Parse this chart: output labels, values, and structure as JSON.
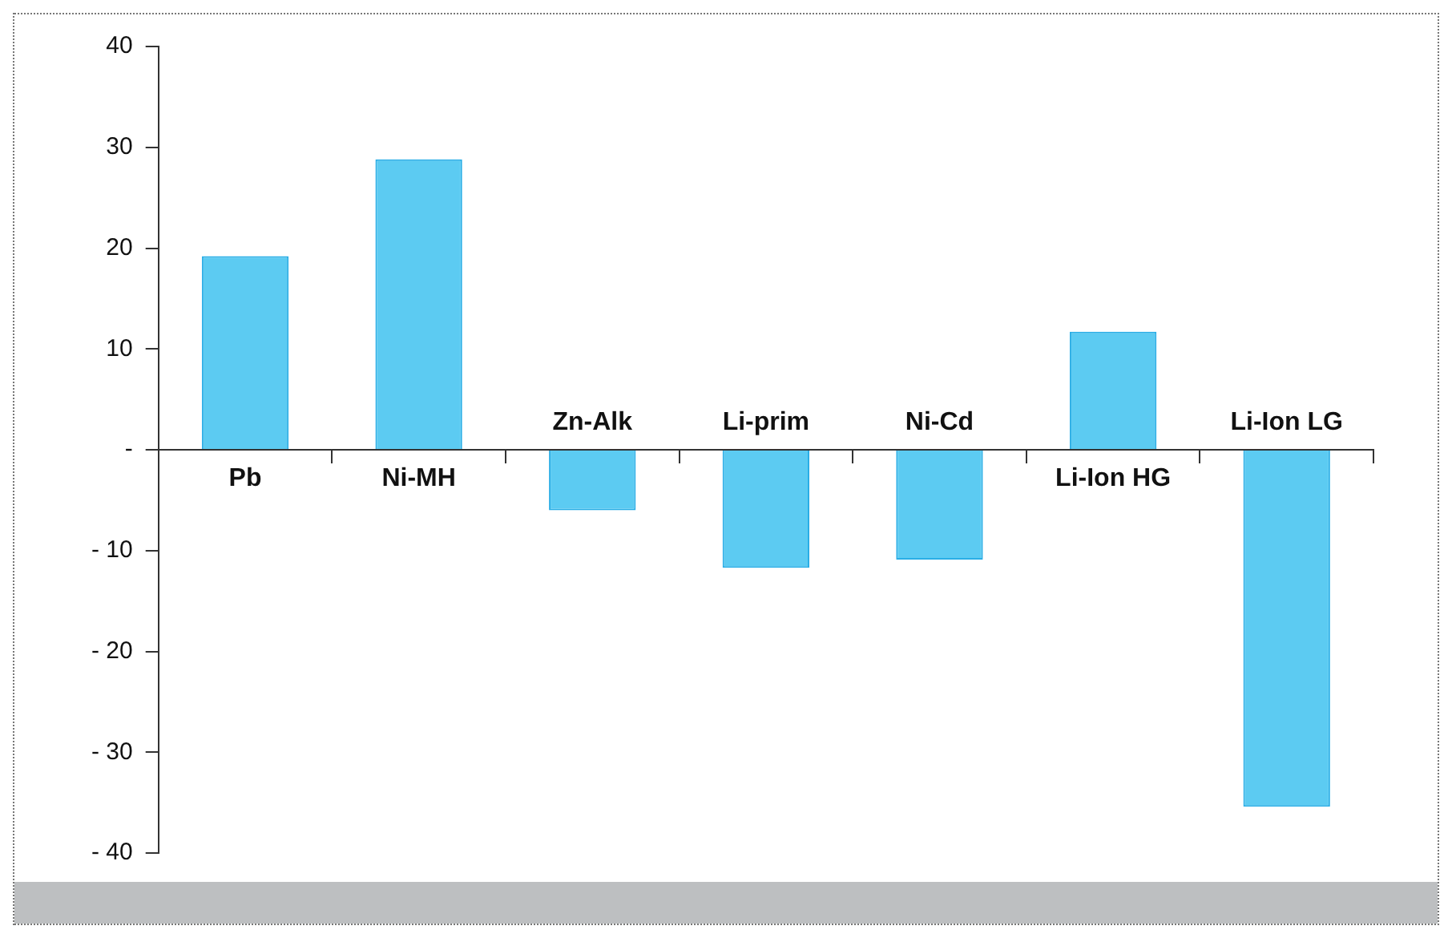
{
  "chart_data": {
    "type": "bar",
    "categories": [
      "Pb",
      "Ni-MH",
      "Zn-Alk",
      "Li-prim",
      "Ni-Cd",
      "Li-Ion HG",
      "Li-Ion LG"
    ],
    "values": [
      19.2,
      28.8,
      -6,
      -11.7,
      -10.9,
      11.7,
      -35.4
    ],
    "color": "#5ccbf2",
    "ylim": [
      -40,
      40
    ],
    "yticks": [
      40,
      30,
      20,
      10,
      {
        "value": 0,
        "label": "-"
      },
      {
        "value": -10,
        "label": "- 10"
      },
      {
        "value": -20,
        "label": "- 20"
      },
      {
        "value": -30,
        "label": "- 30"
      },
      {
        "value": -40,
        "label": "- 40"
      }
    ],
    "grid": false,
    "legend": false
  }
}
